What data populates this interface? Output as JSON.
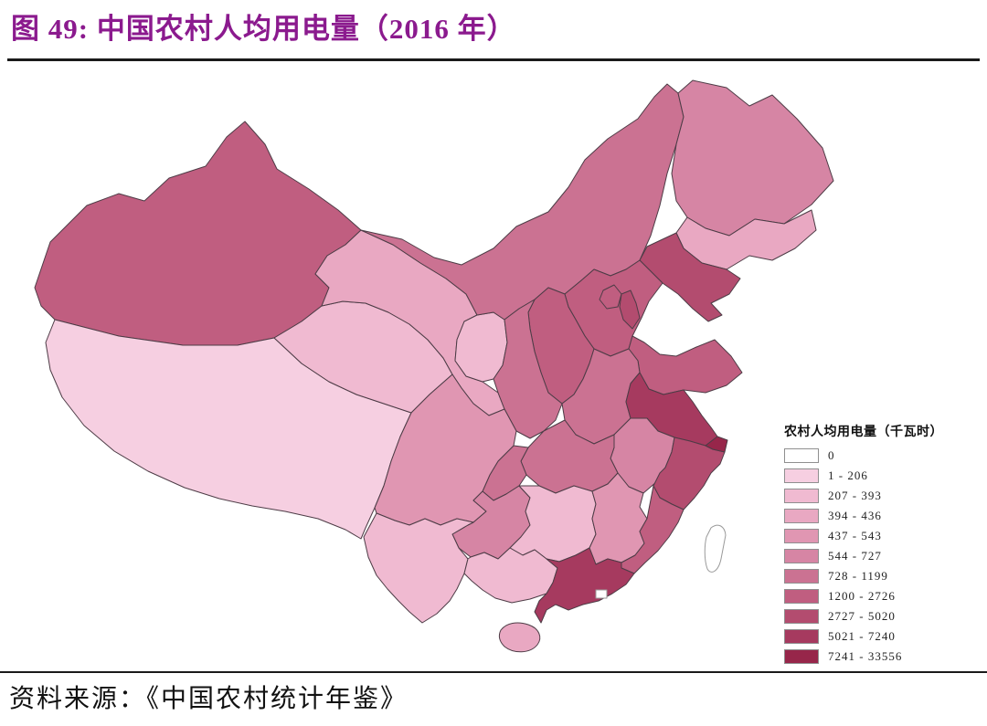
{
  "figure": {
    "title": "图 49:  中国农村人均用电量（2016 年）",
    "title_color": "#8B1A8E",
    "source": "资料来源：《中国农村统计年鉴》"
  },
  "legend": {
    "title": "农村人均用电量（千瓦时）",
    "items": [
      {
        "label": "0",
        "color": "#FFFFFF"
      },
      {
        "label": "1 - 206",
        "color": "#F6CFE1"
      },
      {
        "label": "207 - 393",
        "color": "#F0BAD1"
      },
      {
        "label": "394 - 436",
        "color": "#E9A8C2"
      },
      {
        "label": "437 - 543",
        "color": "#E096B2"
      },
      {
        "label": "544 - 727",
        "color": "#D685A4"
      },
      {
        "label": "728 - 1199",
        "color": "#CB7292"
      },
      {
        "label": "1200 - 2726",
        "color": "#C05E80"
      },
      {
        "label": "2727 - 5020",
        "color": "#B34C6F"
      },
      {
        "label": "5021 - 7240",
        "color": "#A63A5F"
      },
      {
        "label": "7241 - 33556",
        "color": "#97264A"
      }
    ]
  },
  "chart_data": {
    "type": "heatmap",
    "subtype": "choropleth-map",
    "region": "China provinces",
    "title": "中国农村人均用电量（2016 年）",
    "legend_title": "农村人均用电量（千瓦时）",
    "unit": "千瓦时",
    "year": "2016",
    "bins": [
      {
        "label": "0",
        "color": "#FFFFFF"
      },
      {
        "label": "1 - 206",
        "color": "#F6CFE1"
      },
      {
        "label": "207 - 393",
        "color": "#F0BAD1"
      },
      {
        "label": "394 - 436",
        "color": "#E9A8C2"
      },
      {
        "label": "437 - 543",
        "color": "#E096B2"
      },
      {
        "label": "544 - 727",
        "color": "#D685A4"
      },
      {
        "label": "728 - 1199",
        "color": "#CB7292"
      },
      {
        "label": "1200 - 2726",
        "color": "#C05E80"
      },
      {
        "label": "2727 - 5020",
        "color": "#B34C6F"
      },
      {
        "label": "5021 - 7240",
        "color": "#A63A5F"
      },
      {
        "label": "7241 - 33556",
        "color": "#97264A"
      }
    ],
    "provinces": [
      {
        "id": "xinjiang",
        "name": "新疆",
        "bin": "1200 - 2726"
      },
      {
        "id": "xizang",
        "name": "西藏",
        "bin": "1 - 206"
      },
      {
        "id": "qinghai",
        "name": "青海",
        "bin": "207 - 393"
      },
      {
        "id": "gansu",
        "name": "甘肃",
        "bin": "394 - 436"
      },
      {
        "id": "ningxia",
        "name": "宁夏",
        "bin": "207 - 393"
      },
      {
        "id": "neimenggu",
        "name": "内蒙古",
        "bin": "728 - 1199"
      },
      {
        "id": "heilongjiang",
        "name": "黑龙江",
        "bin": "544 - 727"
      },
      {
        "id": "jilin",
        "name": "吉林",
        "bin": "394 - 436"
      },
      {
        "id": "liaoning",
        "name": "辽宁",
        "bin": "2727 - 5020"
      },
      {
        "id": "hebei",
        "name": "河北",
        "bin": "1200 - 2726"
      },
      {
        "id": "beijing",
        "name": "北京",
        "bin": "1200 - 2726"
      },
      {
        "id": "tianjin",
        "name": "天津",
        "bin": "2727 - 5020"
      },
      {
        "id": "shanxi",
        "name": "山西",
        "bin": "1200 - 2726"
      },
      {
        "id": "shaanxi",
        "name": "陕西",
        "bin": "728 - 1199"
      },
      {
        "id": "shandong",
        "name": "山东",
        "bin": "1200 - 2726"
      },
      {
        "id": "henan",
        "name": "河南",
        "bin": "728 - 1199"
      },
      {
        "id": "jiangsu",
        "name": "江苏",
        "bin": "5021 - 7240"
      },
      {
        "id": "shanghai",
        "name": "上海",
        "bin": "7241 - 33556"
      },
      {
        "id": "anhui",
        "name": "安徽",
        "bin": "544 - 727"
      },
      {
        "id": "hubei",
        "name": "湖北",
        "bin": "728 - 1199"
      },
      {
        "id": "chongqing",
        "name": "重庆",
        "bin": "728 - 1199"
      },
      {
        "id": "sichuan",
        "name": "四川",
        "bin": "437 - 543"
      },
      {
        "id": "guizhou",
        "name": "贵州",
        "bin": "544 - 727"
      },
      {
        "id": "yunnan",
        "name": "云南",
        "bin": "207 - 393"
      },
      {
        "id": "hunan",
        "name": "湖南",
        "bin": "207 - 393"
      },
      {
        "id": "jiangxi",
        "name": "江西",
        "bin": "437 - 543"
      },
      {
        "id": "zhejiang",
        "name": "浙江",
        "bin": "2727 - 5020"
      },
      {
        "id": "fujian",
        "name": "福建",
        "bin": "1200 - 2726"
      },
      {
        "id": "guangxi",
        "name": "广西",
        "bin": "207 - 393"
      },
      {
        "id": "guangdong",
        "name": "广东",
        "bin": "5021 - 7240"
      },
      {
        "id": "hainan",
        "name": "海南",
        "bin": "394 - 436"
      },
      {
        "id": "taiwan",
        "name": "台湾",
        "bin": "0"
      },
      {
        "id": "hongkong",
        "name": "香港",
        "bin": "0"
      }
    ]
  }
}
